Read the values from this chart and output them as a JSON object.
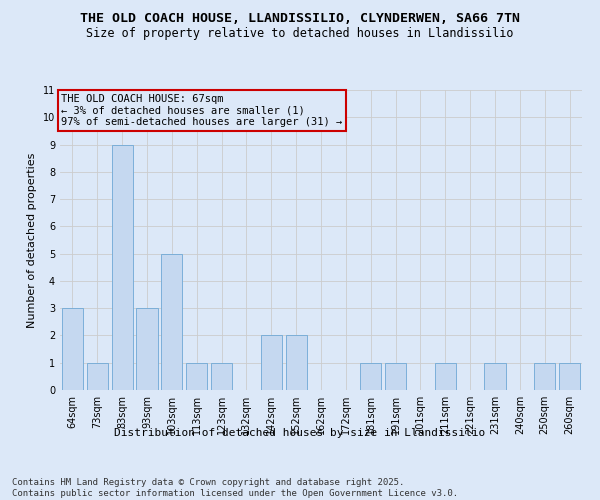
{
  "title": "THE OLD COACH HOUSE, LLANDISSILIO, CLYNDERWEN, SA66 7TN",
  "subtitle": "Size of property relative to detached houses in Llandissilio",
  "xlabel": "Distribution of detached houses by size in Llandissilio",
  "ylabel": "Number of detached properties",
  "categories": [
    "64sqm",
    "73sqm",
    "83sqm",
    "93sqm",
    "103sqm",
    "113sqm",
    "123sqm",
    "132sqm",
    "142sqm",
    "152sqm",
    "162sqm",
    "172sqm",
    "181sqm",
    "191sqm",
    "201sqm",
    "211sqm",
    "221sqm",
    "231sqm",
    "240sqm",
    "250sqm",
    "260sqm"
  ],
  "values": [
    3,
    1,
    9,
    3,
    5,
    1,
    1,
    0,
    2,
    2,
    0,
    0,
    1,
    1,
    0,
    1,
    0,
    1,
    0,
    1,
    1
  ],
  "bar_color": "#c5d8f0",
  "bar_edge_color": "#6fa8d6",
  "annotation_box_color": "#cc0000",
  "annotation_lines": [
    "THE OLD COACH HOUSE: 67sqm",
    "← 3% of detached houses are smaller (1)",
    "97% of semi-detached houses are larger (31) →"
  ],
  "ylim": [
    0,
    11
  ],
  "yticks": [
    0,
    1,
    2,
    3,
    4,
    5,
    6,
    7,
    8,
    9,
    10,
    11
  ],
  "grid_color": "#cccccc",
  "background_color": "#dce8f8",
  "footnote": "Contains HM Land Registry data © Crown copyright and database right 2025.\nContains public sector information licensed under the Open Government Licence v3.0.",
  "title_fontsize": 9.5,
  "subtitle_fontsize": 8.5,
  "axis_label_fontsize": 8,
  "tick_fontsize": 7,
  "annotation_fontsize": 7.5,
  "footnote_fontsize": 6.5
}
